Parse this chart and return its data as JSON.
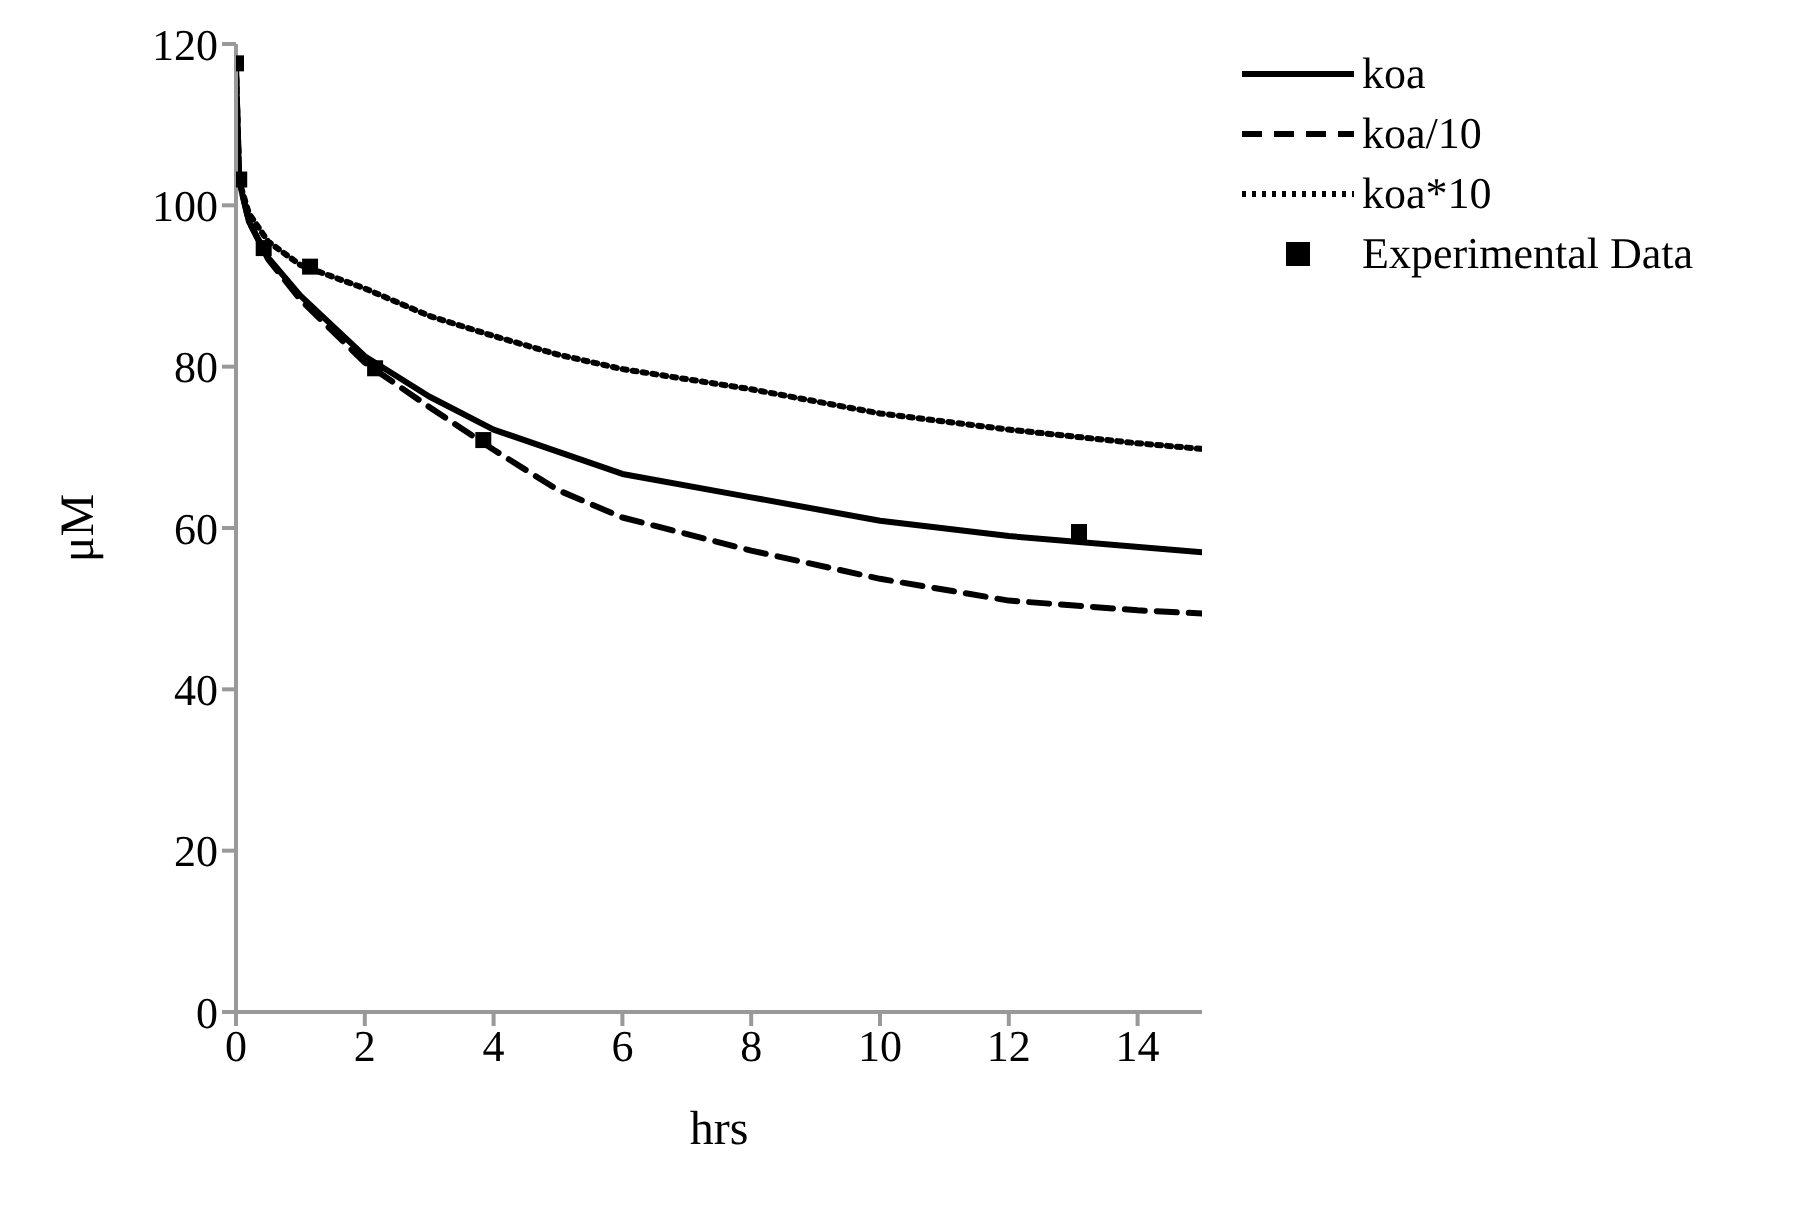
{
  "chart_data": {
    "type": "line",
    "xlabel": "hrs",
    "ylabel": "μM",
    "xlim": [
      0,
      15
    ],
    "xticks": [
      0,
      2,
      4,
      6,
      8,
      10,
      12,
      14
    ],
    "ylim": [
      0,
      120
    ],
    "yticks": [
      0,
      20,
      40,
      60,
      80,
      100,
      120
    ],
    "grid": false,
    "legend": "top right",
    "series": [
      {
        "name": "koa",
        "color": "#000000",
        "line_style": "solid",
        "marker": "none",
        "x": [
          0,
          0.05,
          0.2,
          0.5,
          1,
          2,
          3,
          4,
          6,
          8,
          10,
          12,
          15
        ],
        "values": [
          117,
          103,
          98,
          93.5,
          88.8,
          81.3,
          76.3,
          72.2,
          66.7,
          63.8,
          60.9,
          59,
          57
        ]
      },
      {
        "name": "koa/10",
        "color": "#000000",
        "line_style": "dashed",
        "marker": "none",
        "x": [
          0,
          0.05,
          0.2,
          0.5,
          1,
          2,
          3,
          4,
          5,
          6,
          8,
          10,
          12,
          14,
          15
        ],
        "values": [
          117,
          103,
          98,
          93.3,
          88.3,
          80.5,
          75,
          69.7,
          64.7,
          61.3,
          57.2,
          53.7,
          51,
          49.8,
          49.4
        ]
      },
      {
        "name": "koa*10",
        "color": "#000000",
        "line_style": "dotted",
        "marker": "none",
        "x": [
          0,
          0.05,
          0.2,
          0.5,
          1,
          2,
          3,
          4,
          5,
          6,
          8,
          10,
          12,
          14,
          15
        ],
        "values": [
          117,
          103,
          99,
          95.5,
          92.6,
          89.7,
          86.3,
          83.8,
          81.5,
          79.7,
          77.2,
          74.2,
          72.2,
          70.5,
          69.8
        ]
      },
      {
        "name": "Experimental Data",
        "type": "scatter",
        "color": "#000000",
        "marker": "square",
        "x": [
          0,
          0.05,
          0.43,
          1.15,
          2.16,
          3.84,
          13.09
        ],
        "values": [
          117.6,
          103.2,
          94.7,
          92.4,
          79.8,
          70.9,
          59.5
        ]
      }
    ]
  }
}
